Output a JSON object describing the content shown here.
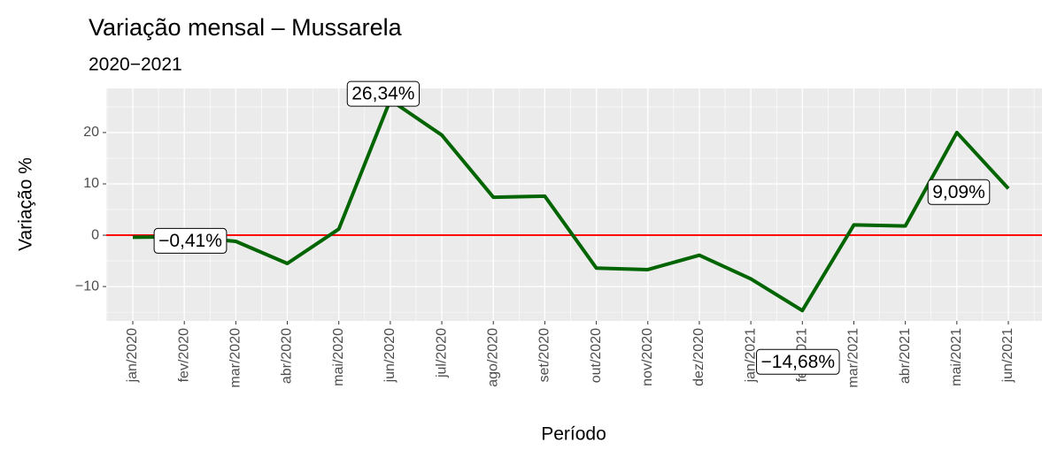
{
  "chart_data": {
    "type": "line",
    "title": "Variação mensal – Mussarela",
    "subtitle": "2020−2021",
    "x_label": "Período",
    "y_label": "Variação %",
    "categories": [
      "jan/2020",
      "fev/2020",
      "mar/2020",
      "abr/2020",
      "mai/2020",
      "jun/2020",
      "jul/2020",
      "ago/2020",
      "set/2020",
      "out/2020",
      "nov/2020",
      "dez/2020",
      "jan/2021",
      "fev/2021",
      "mar/2021",
      "abr/2021",
      "mai/2021",
      "jun/2021"
    ],
    "series": [
      {
        "name": "Mussarela",
        "color": "#006400",
        "values": [
          -0.41,
          -0.3,
          -1.2,
          -5.5,
          1.2,
          26.34,
          19.5,
          7.4,
          7.6,
          -6.4,
          -6.7,
          -3.9,
          -8.5,
          -14.68,
          2.0,
          1.8,
          20.0,
          9.09
        ],
        "value_labels": [
          "−0,41%",
          null,
          null,
          null,
          null,
          "26,34%",
          null,
          null,
          null,
          null,
          null,
          null,
          null,
          "−14,68%",
          null,
          null,
          null,
          "9,09%"
        ]
      }
    ],
    "reference_line": {
      "value": 0,
      "color": "#ff0000"
    },
    "ylim": [
      -16.7,
      28.6
    ],
    "yticks": [
      {
        "value": -10,
        "label": "−10"
      },
      0,
      10,
      20
    ],
    "grid": true
  }
}
